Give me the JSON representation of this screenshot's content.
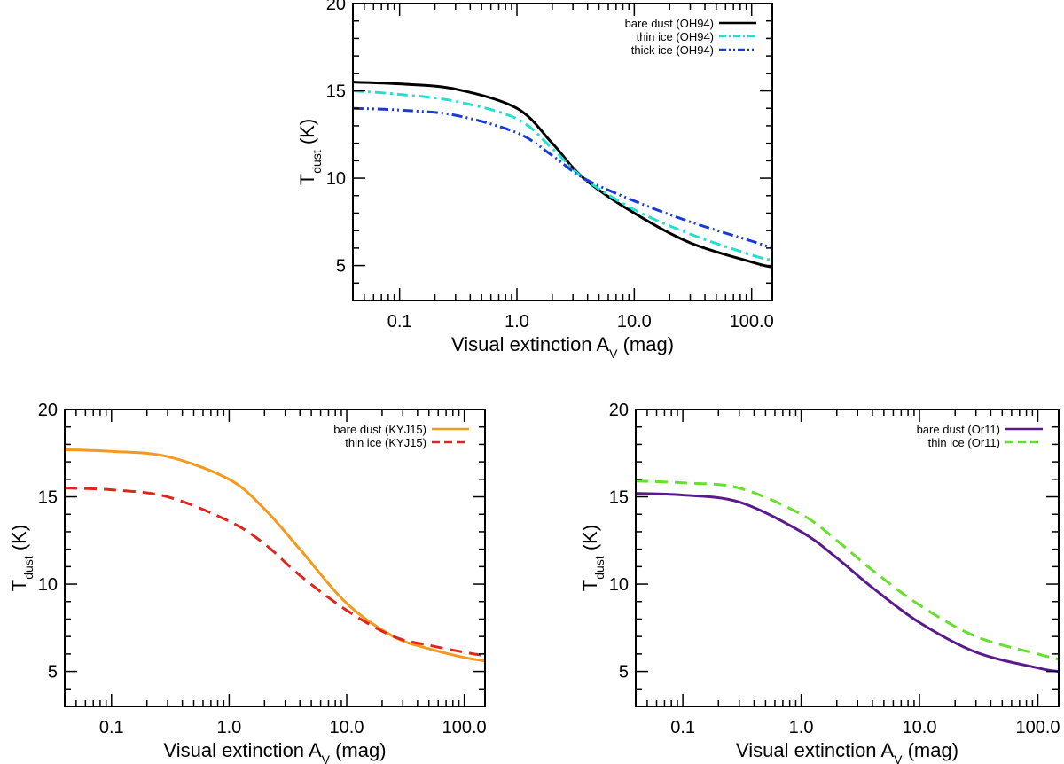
{
  "chart_data": [
    {
      "id": "top",
      "type": "line",
      "title": "",
      "xscale": "log",
      "xlim": [
        0.04,
        150
      ],
      "ylim": [
        3,
        20
      ],
      "xlabel": {
        "prefix": "Visual extinction A",
        "sub": "V",
        "suffix": " (mag)"
      },
      "ylabel": {
        "prefix": "T",
        "sub": "dust",
        "suffix": " (K)"
      },
      "xticks": [
        0.1,
        1.0,
        10.0,
        100.0
      ],
      "xtick_labels": [
        "0.1",
        "1.0",
        "10.0",
        "100.0"
      ],
      "yticks": [
        5,
        10,
        15,
        20
      ],
      "ytick_labels": [
        "5",
        "10",
        "15",
        "20"
      ],
      "legend_position": "top-right",
      "series": [
        {
          "name": "bare dust (OH94)",
          "color": "#000000",
          "dash": "solid",
          "x": [
            0.04,
            0.1,
            0.3,
            1.0,
            2.0,
            3.7,
            10,
            30,
            100,
            150
          ],
          "values": [
            15.5,
            15.4,
            15.1,
            14.0,
            12.0,
            10.0,
            8.0,
            6.3,
            5.2,
            4.9
          ]
        },
        {
          "name": "thin ice (OH94)",
          "color": "#22e0d0",
          "dash": "dashdot",
          "x": [
            0.04,
            0.1,
            0.3,
            1.0,
            2.0,
            3.7,
            10,
            30,
            100,
            150
          ],
          "values": [
            15.0,
            14.8,
            14.4,
            13.4,
            11.7,
            10.0,
            8.2,
            6.8,
            5.6,
            5.3
          ]
        },
        {
          "name": "thick ice (OH94)",
          "color": "#1a3ad8",
          "dash": "dashdotdot",
          "x": [
            0.04,
            0.1,
            0.3,
            1.0,
            2.0,
            3.7,
            10,
            30,
            100,
            150
          ],
          "values": [
            14.0,
            13.9,
            13.6,
            12.6,
            11.3,
            10.0,
            8.7,
            7.5,
            6.4,
            6.0
          ]
        }
      ]
    },
    {
      "id": "bottom-left",
      "type": "line",
      "title": "",
      "xscale": "log",
      "xlim": [
        0.04,
        150
      ],
      "ylim": [
        3,
        20
      ],
      "xlabel": {
        "prefix": "Visual extinction A",
        "sub": "V",
        "suffix": " (mag)"
      },
      "ylabel": {
        "prefix": "T",
        "sub": "dust",
        "suffix": " (K)"
      },
      "xticks": [
        0.1,
        1.0,
        10.0,
        100.0
      ],
      "xtick_labels": [
        "0.1",
        "1.0",
        "10.0",
        "100.0"
      ],
      "yticks": [
        5,
        10,
        15,
        20
      ],
      "ytick_labels": [
        "5",
        "10",
        "15",
        "20"
      ],
      "legend_position": "top-right",
      "series": [
        {
          "name": "bare dust (KYJ15)",
          "color": "#f39a1e",
          "dash": "solid",
          "x": [
            0.04,
            0.1,
            0.3,
            1.0,
            2.0,
            4.0,
            10,
            25,
            50,
            100,
            150
          ],
          "values": [
            17.7,
            17.6,
            17.3,
            16.0,
            14.3,
            12.0,
            8.9,
            7.0,
            6.3,
            5.8,
            5.6
          ]
        },
        {
          "name": "thin ice (KYJ15)",
          "color": "#e0261c",
          "dash": "dashed",
          "x": [
            0.04,
            0.1,
            0.3,
            1.0,
            2.0,
            4.0,
            10,
            25,
            50,
            100,
            150
          ],
          "values": [
            15.5,
            15.4,
            15.0,
            13.6,
            12.3,
            10.5,
            8.5,
            7.0,
            6.5,
            6.1,
            5.9
          ]
        }
      ]
    },
    {
      "id": "bottom-right",
      "type": "line",
      "title": "",
      "xscale": "log",
      "xlim": [
        0.04,
        150
      ],
      "ylim": [
        3,
        20
      ],
      "xlabel": {
        "prefix": "Visual extinction A",
        "sub": "V",
        "suffix": " (mag)"
      },
      "ylabel": {
        "prefix": "T",
        "sub": "dust",
        "suffix": " (K)"
      },
      "xticks": [
        0.1,
        1.0,
        10.0,
        100.0
      ],
      "xtick_labels": [
        "0.1",
        "1.0",
        "10.0",
        "100.0"
      ],
      "yticks": [
        5,
        10,
        15,
        20
      ],
      "ytick_labels": [
        "5",
        "10",
        "15",
        "20"
      ],
      "legend_position": "top-right",
      "series": [
        {
          "name": "bare dust (Or11)",
          "color": "#5a1a8c",
          "dash": "solid",
          "x": [
            0.04,
            0.1,
            0.3,
            1.0,
            2.0,
            4.0,
            10,
            30,
            100,
            150
          ],
          "values": [
            15.2,
            15.1,
            14.7,
            13.0,
            11.5,
            9.8,
            7.8,
            6.1,
            5.2,
            5.0
          ]
        },
        {
          "name": "thin ice (Or11)",
          "color": "#66e02a",
          "dash": "dashed",
          "x": [
            0.04,
            0.1,
            0.3,
            1.0,
            2.0,
            4.0,
            10,
            30,
            100,
            150
          ],
          "values": [
            15.9,
            15.8,
            15.5,
            14.0,
            12.5,
            10.8,
            8.8,
            7.0,
            6.0,
            5.7
          ]
        }
      ]
    }
  ]
}
